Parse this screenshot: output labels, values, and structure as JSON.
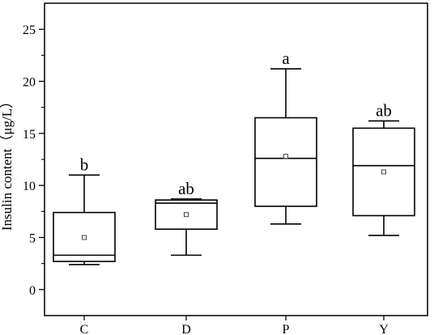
{
  "chart_data": {
    "type": "box",
    "ylabel": "Insulin content（μg/L）",
    "ylim": [
      -2.5,
      27.5
    ],
    "yticks": [
      0,
      5,
      10,
      15,
      20,
      25
    ],
    "categories": [
      "C",
      "D",
      "P",
      "Y"
    ],
    "boxes": [
      {
        "category": "C",
        "whisker_low": 2.4,
        "q1": 2.7,
        "median": 3.3,
        "q3": 7.4,
        "whisker_high": 11.0,
        "mean": 5.0,
        "caps": [
          2.4,
          11.0
        ],
        "letter": "b"
      },
      {
        "category": "D",
        "whisker_low": 3.3,
        "q1": 5.8,
        "median": 8.3,
        "q3": 8.6,
        "whisker_high": 8.7,
        "mean": 7.2,
        "caps": [
          3.3,
          8.7
        ],
        "letter": "ab"
      },
      {
        "category": "P",
        "whisker_low": 6.3,
        "q1": 8.0,
        "median": 12.6,
        "q3": 16.5,
        "whisker_high": 21.2,
        "mean": 12.8,
        "caps": [
          6.3,
          21.2
        ],
        "letter": "a"
      },
      {
        "category": "Y",
        "whisker_low": 5.2,
        "q1": 7.1,
        "median": 11.9,
        "q3": 15.5,
        "whisker_high": 16.2,
        "mean": 11.3,
        "caps": [
          5.2,
          16.2
        ],
        "letter": "ab"
      }
    ],
    "grid": false,
    "legend": "none"
  }
}
